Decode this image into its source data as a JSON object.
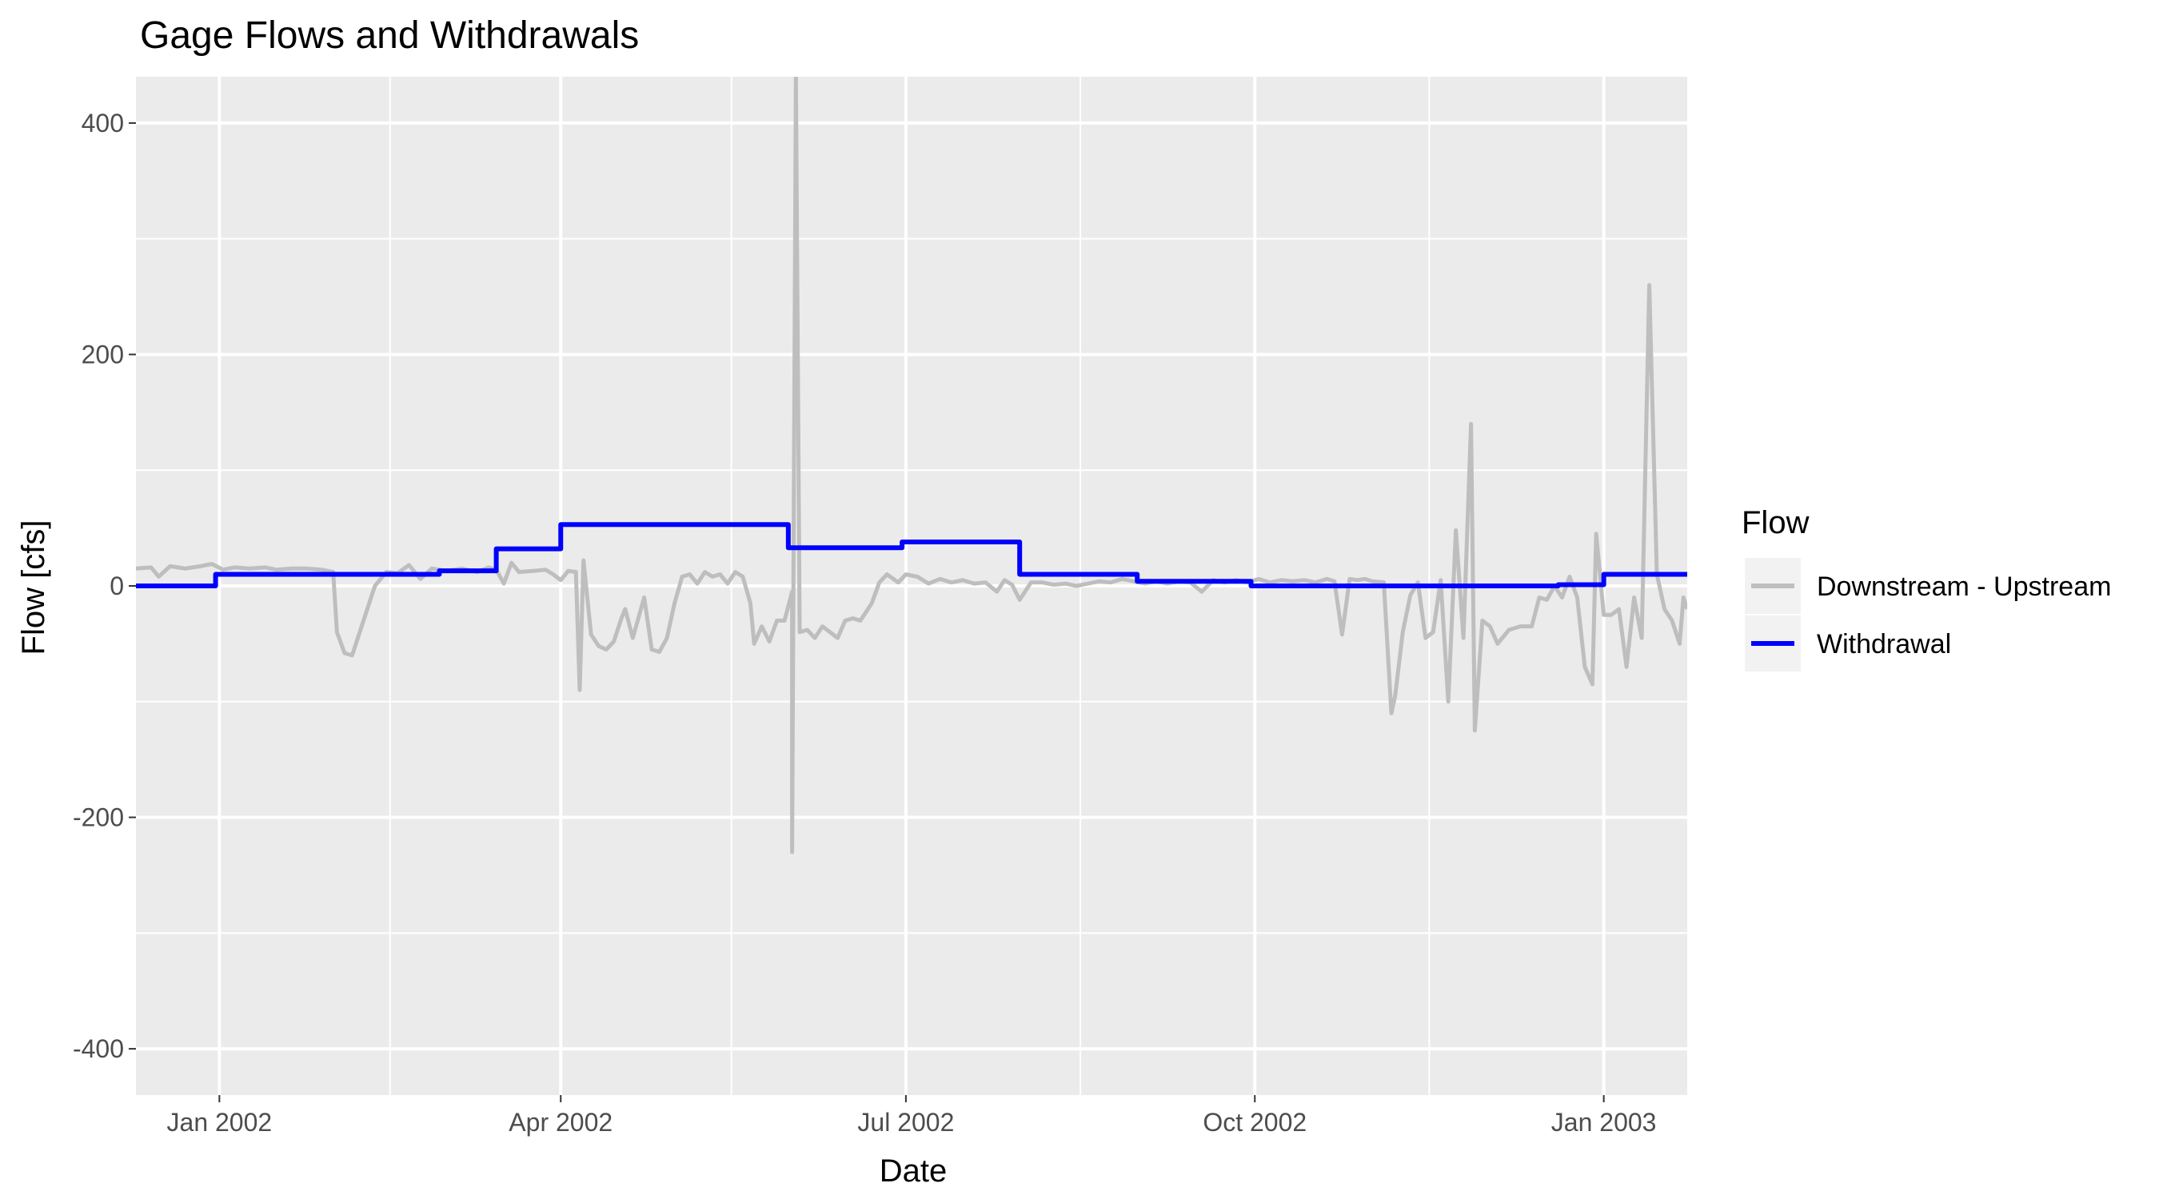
{
  "chart_data": {
    "type": "line",
    "title": "Gage Flows and Withdrawals",
    "xlabel": "Date",
    "ylabel": "Flow [cfs]",
    "xlim": [
      "2001-12-10",
      "2003-01-23"
    ],
    "ylim": [
      -440,
      440
    ],
    "x_ticks": [
      {
        "date": "2002-01-01",
        "label": "Jan 2002"
      },
      {
        "date": "2002-04-01",
        "label": "Apr 2002"
      },
      {
        "date": "2002-07-01",
        "label": "Jul 2002"
      },
      {
        "date": "2002-10-01",
        "label": "Oct 2002"
      },
      {
        "date": "2003-01-01",
        "label": "Jan 2003"
      }
    ],
    "x_minor_ticks": [
      "2002-02-15",
      "2002-05-16",
      "2002-08-16",
      "2002-11-16"
    ],
    "y_ticks": [
      {
        "value": 400,
        "label": "400"
      },
      {
        "value": 200,
        "label": "200"
      },
      {
        "value": 0,
        "label": "0"
      },
      {
        "value": -200,
        "label": "-200"
      },
      {
        "value": -400,
        "label": "-400"
      }
    ],
    "y_minor_ticks": [
      300,
      100,
      -100,
      -300
    ],
    "grid": true,
    "panel_background": "#ebebeb",
    "grid_color": "#ffffff",
    "legend": {
      "title": "Flow",
      "position": "right"
    },
    "series": [
      {
        "name": "Downstream - Upstream",
        "color": "#bebebe",
        "points": [
          [
            "2001-12-10",
            15
          ],
          [
            "2001-12-14",
            16
          ],
          [
            "2001-12-16",
            8
          ],
          [
            "2001-12-19",
            17
          ],
          [
            "2001-12-23",
            15
          ],
          [
            "2001-12-27",
            17
          ],
          [
            "2001-12-30",
            19
          ],
          [
            "2002-01-02",
            14
          ],
          [
            "2002-01-05",
            16
          ],
          [
            "2002-01-09",
            15
          ],
          [
            "2002-01-13",
            16
          ],
          [
            "2002-01-16",
            14
          ],
          [
            "2002-01-20",
            15
          ],
          [
            "2002-01-24",
            15
          ],
          [
            "2002-01-28",
            14
          ],
          [
            "2002-01-31",
            12
          ],
          [
            "2002-02-01",
            -40
          ],
          [
            "2002-02-03",
            -58
          ],
          [
            "2002-02-05",
            -60
          ],
          [
            "2002-02-08",
            -30
          ],
          [
            "2002-02-11",
            0
          ],
          [
            "2002-02-14",
            12
          ],
          [
            "2002-02-17",
            11
          ],
          [
            "2002-02-20",
            18
          ],
          [
            "2002-02-23",
            6
          ],
          [
            "2002-02-26",
            15
          ],
          [
            "2002-03-02",
            13
          ],
          [
            "2002-03-06",
            15
          ],
          [
            "2002-03-10",
            12
          ],
          [
            "2002-03-13",
            16
          ],
          [
            "2002-03-15",
            14
          ],
          [
            "2002-03-17",
            2
          ],
          [
            "2002-03-19",
            20
          ],
          [
            "2002-03-21",
            12
          ],
          [
            "2002-03-25",
            13
          ],
          [
            "2002-03-28",
            14
          ],
          [
            "2002-03-30",
            10
          ],
          [
            "2002-04-01",
            5
          ],
          [
            "2002-04-03",
            13
          ],
          [
            "2002-04-05",
            12
          ],
          [
            "2002-04-06",
            -90
          ],
          [
            "2002-04-07",
            22
          ],
          [
            "2002-04-09",
            -42
          ],
          [
            "2002-04-11",
            -52
          ],
          [
            "2002-04-13",
            -55
          ],
          [
            "2002-04-15",
            -48
          ],
          [
            "2002-04-17",
            -28
          ],
          [
            "2002-04-18",
            -20
          ],
          [
            "2002-04-20",
            -45
          ],
          [
            "2002-04-23",
            -10
          ],
          [
            "2002-04-25",
            -55
          ],
          [
            "2002-04-27",
            -57
          ],
          [
            "2002-04-29",
            -45
          ],
          [
            "2002-05-01",
            -15
          ],
          [
            "2002-05-03",
            8
          ],
          [
            "2002-05-05",
            10
          ],
          [
            "2002-05-07",
            2
          ],
          [
            "2002-05-09",
            12
          ],
          [
            "2002-05-11",
            8
          ],
          [
            "2002-05-13",
            10
          ],
          [
            "2002-05-15",
            2
          ],
          [
            "2002-05-17",
            12
          ],
          [
            "2002-05-19",
            8
          ],
          [
            "2002-05-21",
            -15
          ],
          [
            "2002-05-22",
            -50
          ],
          [
            "2002-05-24",
            -35
          ],
          [
            "2002-05-26",
            -48
          ],
          [
            "2002-05-28",
            -30
          ],
          [
            "2002-05-30",
            -30
          ],
          [
            "2002-06-01",
            -5
          ],
          [
            "2002-06-01",
            -230
          ],
          [
            "2002-06-02",
            440
          ],
          [
            "2002-06-03",
            -40
          ],
          [
            "2002-06-05",
            -38
          ],
          [
            "2002-06-07",
            -45
          ],
          [
            "2002-06-09",
            -35
          ],
          [
            "2002-06-11",
            -40
          ],
          [
            "2002-06-13",
            -45
          ],
          [
            "2002-06-15",
            -30
          ],
          [
            "2002-06-17",
            -28
          ],
          [
            "2002-06-19",
            -30
          ],
          [
            "2002-06-22",
            -15
          ],
          [
            "2002-06-24",
            3
          ],
          [
            "2002-06-26",
            10
          ],
          [
            "2002-06-29",
            3
          ],
          [
            "2002-07-01",
            10
          ],
          [
            "2002-07-04",
            8
          ],
          [
            "2002-07-07",
            2
          ],
          [
            "2002-07-10",
            6
          ],
          [
            "2002-07-13",
            3
          ],
          [
            "2002-07-16",
            5
          ],
          [
            "2002-07-19",
            2
          ],
          [
            "2002-07-22",
            3
          ],
          [
            "2002-07-25",
            -5
          ],
          [
            "2002-07-27",
            5
          ],
          [
            "2002-07-29",
            1
          ],
          [
            "2002-07-31",
            -12
          ],
          [
            "2002-08-03",
            3
          ],
          [
            "2002-08-06",
            3
          ],
          [
            "2002-08-09",
            1
          ],
          [
            "2002-08-12",
            2
          ],
          [
            "2002-08-15",
            0
          ],
          [
            "2002-08-18",
            2
          ],
          [
            "2002-08-21",
            4
          ],
          [
            "2002-08-24",
            3
          ],
          [
            "2002-08-27",
            6
          ],
          [
            "2002-08-30",
            4
          ],
          [
            "2002-09-02",
            2
          ],
          [
            "2002-09-05",
            4
          ],
          [
            "2002-09-08",
            2
          ],
          [
            "2002-09-11",
            4
          ],
          [
            "2002-09-14",
            3
          ],
          [
            "2002-09-17",
            -5
          ],
          [
            "2002-09-20",
            5
          ],
          [
            "2002-09-23",
            3
          ],
          [
            "2002-09-26",
            5
          ],
          [
            "2002-09-29",
            3
          ],
          [
            "2002-10-02",
            6
          ],
          [
            "2002-10-05",
            3
          ],
          [
            "2002-10-08",
            5
          ],
          [
            "2002-10-11",
            4
          ],
          [
            "2002-10-14",
            5
          ],
          [
            "2002-10-17",
            3
          ],
          [
            "2002-10-20",
            6
          ],
          [
            "2002-10-22",
            4
          ],
          [
            "2002-10-24",
            -42
          ],
          [
            "2002-10-26",
            6
          ],
          [
            "2002-10-28",
            5
          ],
          [
            "2002-10-30",
            6
          ],
          [
            "2002-11-01",
            4
          ],
          [
            "2002-11-04",
            3
          ],
          [
            "2002-11-06",
            -110
          ],
          [
            "2002-11-07",
            -95
          ],
          [
            "2002-11-09",
            -40
          ],
          [
            "2002-11-11",
            -8
          ],
          [
            "2002-11-13",
            3
          ],
          [
            "2002-11-15",
            -45
          ],
          [
            "2002-11-17",
            -40
          ],
          [
            "2002-11-19",
            5
          ],
          [
            "2002-11-21",
            -100
          ],
          [
            "2002-11-23",
            48
          ],
          [
            "2002-11-25",
            -45
          ],
          [
            "2002-11-27",
            140
          ],
          [
            "2002-11-28",
            -125
          ],
          [
            "2002-11-30",
            -30
          ],
          [
            "2002-12-02",
            -35
          ],
          [
            "2002-12-04",
            -50
          ],
          [
            "2002-12-07",
            -38
          ],
          [
            "2002-12-10",
            -35
          ],
          [
            "2002-12-13",
            -35
          ],
          [
            "2002-12-15",
            -10
          ],
          [
            "2002-12-17",
            -12
          ],
          [
            "2002-12-19",
            0
          ],
          [
            "2002-12-21",
            -10
          ],
          [
            "2002-12-23",
            8
          ],
          [
            "2002-12-25",
            -10
          ],
          [
            "2002-12-27",
            -70
          ],
          [
            "2002-12-29",
            -85
          ],
          [
            "2002-12-30",
            45
          ],
          [
            "2003-01-01",
            -25
          ],
          [
            "2003-01-03",
            -25
          ],
          [
            "2003-01-05",
            -20
          ],
          [
            "2003-01-07",
            -70
          ],
          [
            "2003-01-09",
            -10
          ],
          [
            "2003-01-11",
            -45
          ],
          [
            "2003-01-13",
            260
          ],
          [
            "2003-01-15",
            10
          ],
          [
            "2003-01-17",
            -20
          ],
          [
            "2003-01-19",
            -30
          ],
          [
            "2003-01-21",
            -50
          ],
          [
            "2003-01-22",
            -10
          ],
          [
            "2003-01-23",
            -20
          ]
        ]
      },
      {
        "name": "Withdrawal",
        "color": "#0000ff",
        "step": true,
        "points": [
          [
            "2001-12-10",
            0
          ],
          [
            "2001-12-31",
            0
          ],
          [
            "2001-12-31",
            10
          ],
          [
            "2002-02-28",
            10
          ],
          [
            "2002-02-28",
            13
          ],
          [
            "2002-03-15",
            13
          ],
          [
            "2002-03-15",
            32
          ],
          [
            "2002-04-01",
            32
          ],
          [
            "2002-04-01",
            53
          ],
          [
            "2002-05-31",
            53
          ],
          [
            "2002-05-31",
            33
          ],
          [
            "2002-06-30",
            33
          ],
          [
            "2002-06-30",
            38
          ],
          [
            "2002-07-31",
            38
          ],
          [
            "2002-07-31",
            10
          ],
          [
            "2002-08-31",
            10
          ],
          [
            "2002-08-31",
            4
          ],
          [
            "2002-09-30",
            4
          ],
          [
            "2002-09-30",
            0
          ],
          [
            "2002-12-20",
            0
          ],
          [
            "2002-12-20",
            1
          ],
          [
            "2003-01-01",
            1
          ],
          [
            "2003-01-01",
            10
          ],
          [
            "2003-01-23",
            10
          ]
        ]
      }
    ]
  }
}
